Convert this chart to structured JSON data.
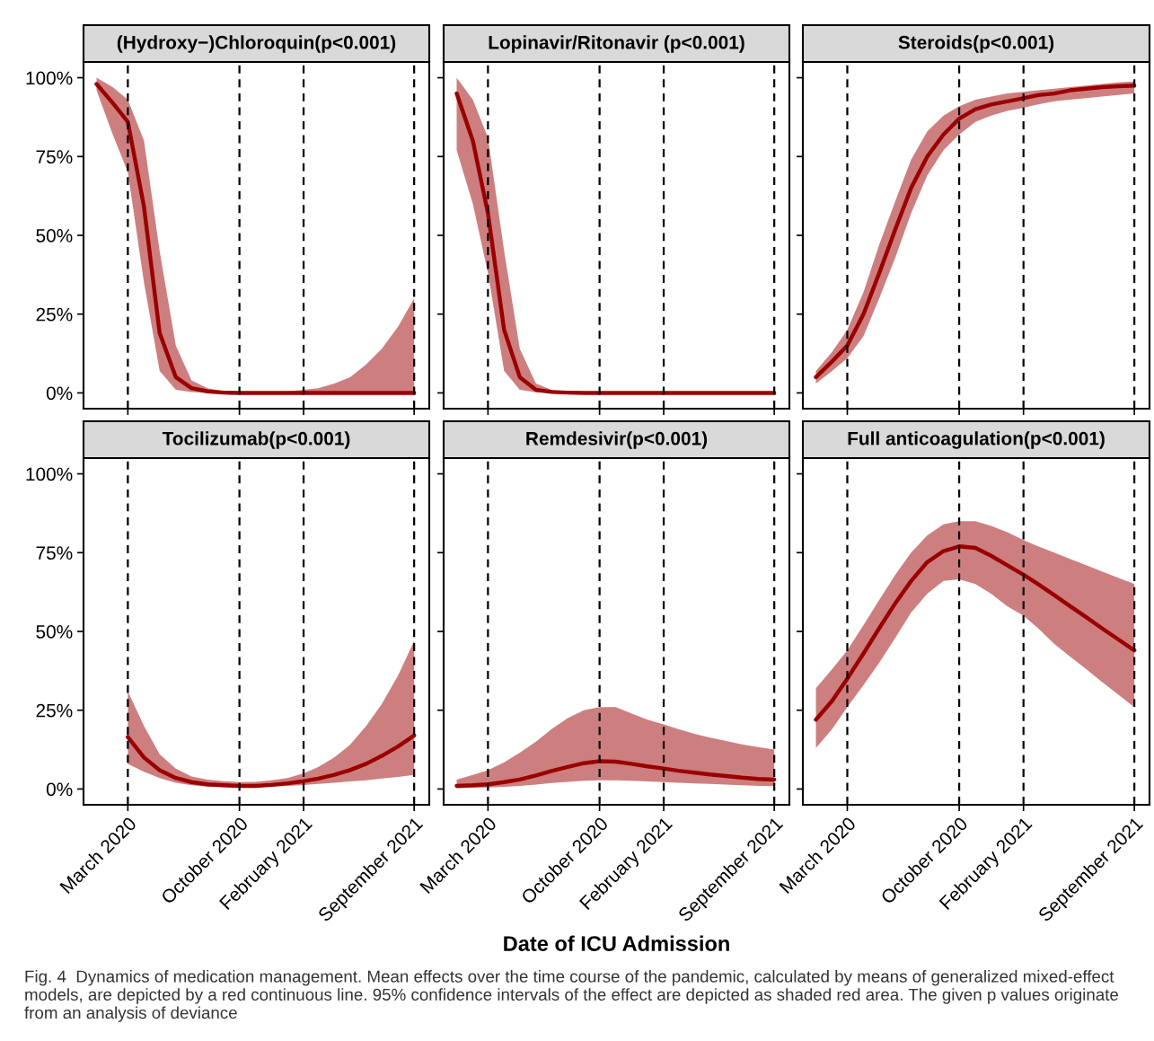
{
  "chart_data": [
    {
      "type": "line",
      "title": "(Hydroxy−)Chloroquin(p<0.001)",
      "tick_labels": "y",
      "xlim": [
        "2019-12-07",
        "2021-09-30"
      ],
      "ylim": [
        -5,
        105
      ],
      "xticks": [
        {
          "value": "2020-03-01",
          "label": null
        },
        {
          "value": "2020-10-01",
          "label": null
        },
        {
          "value": "2021-02-01",
          "label": null
        },
        {
          "value": "2021-09-01",
          "label": null
        }
      ],
      "yticks": [
        {
          "value": 0,
          "label": "0%"
        },
        {
          "value": 25,
          "label": "25%"
        },
        {
          "value": 50,
          "label": "50%"
        },
        {
          "value": 75,
          "label": "75%"
        },
        {
          "value": 100,
          "label": "100%"
        }
      ],
      "ref_lines": [
        {
          "axis": "x",
          "value": "2020-03-01",
          "line_style": "dashed",
          "color": "#000000"
        },
        {
          "axis": "x",
          "value": "2020-10-01",
          "line_style": "dashed",
          "color": "#000000"
        },
        {
          "axis": "x",
          "value": "2021-02-01",
          "line_style": "dashed",
          "color": "#000000"
        },
        {
          "axis": "x",
          "value": "2021-09-01",
          "line_style": "dashed",
          "color": "#000000"
        }
      ],
      "x": [
        "2020-01-01",
        "2020-02-01",
        "2020-03-01",
        "2020-04-01",
        "2020-05-01",
        "2020-06-01",
        "2020-07-01",
        "2020-08-01",
        "2020-09-01",
        "2020-10-01",
        "2020-11-01",
        "2020-12-01",
        "2021-01-01",
        "2021-02-01",
        "2021-03-01",
        "2021-04-01",
        "2021-05-01",
        "2021-06-01",
        "2021-07-01",
        "2021-08-01",
        "2021-09-01"
      ],
      "series": [
        {
          "color": "#9b0000",
          "values": [
            98,
            92,
            86,
            59,
            19,
            5,
            1.5,
            0.5,
            0.1,
            0,
            0,
            0,
            0,
            0,
            0,
            0,
            0,
            0,
            0,
            0,
            0
          ],
          "lower": [
            96,
            82,
            70,
            35,
            7,
            1,
            0.3,
            0,
            0,
            0,
            0,
            0,
            0,
            0,
            0,
            0,
            0,
            0,
            0,
            0,
            0
          ],
          "upper": [
            100,
            97,
            93,
            80,
            45,
            15,
            4,
            1.5,
            0.5,
            0.2,
            0.1,
            0.2,
            0.5,
            1,
            1.5,
            3,
            5,
            9,
            14,
            21,
            30
          ]
        }
      ]
    },
    {
      "type": "line",
      "title": "Lopinavir/Ritonavir (p<0.001)",
      "tick_labels": false,
      "xlim": [
        "2019-12-07",
        "2021-09-30"
      ],
      "ylim": [
        -5,
        105
      ],
      "xticks": [
        {
          "value": "2020-03-01",
          "label": null
        },
        {
          "value": "2020-10-01",
          "label": null
        },
        {
          "value": "2021-02-01",
          "label": null
        },
        {
          "value": "2021-09-01",
          "label": null
        }
      ],
      "yticks": [
        {
          "value": 0,
          "label": null
        },
        {
          "value": 25,
          "label": null
        },
        {
          "value": 50,
          "label": null
        },
        {
          "value": 75,
          "label": null
        },
        {
          "value": 100,
          "label": null
        }
      ],
      "ref_lines": [
        {
          "axis": "x",
          "value": "2020-03-01",
          "line_style": "dashed",
          "color": "#000000"
        },
        {
          "axis": "x",
          "value": "2020-10-01",
          "line_style": "dashed",
          "color": "#000000"
        },
        {
          "axis": "x",
          "value": "2021-02-01",
          "line_style": "dashed",
          "color": "#000000"
        },
        {
          "axis": "x",
          "value": "2021-09-01",
          "line_style": "dashed",
          "color": "#000000"
        }
      ],
      "x": [
        "2020-01-01",
        "2020-02-01",
        "2020-03-01",
        "2020-04-01",
        "2020-05-01",
        "2020-06-01",
        "2020-07-01",
        "2020-08-01",
        "2020-09-01",
        "2020-10-01",
        "2020-11-01",
        "2020-12-01",
        "2021-01-01",
        "2021-02-01",
        "2021-03-01",
        "2021-04-01",
        "2021-05-01",
        "2021-06-01",
        "2021-07-01",
        "2021-08-01",
        "2021-09-01"
      ],
      "series": [
        {
          "color": "#9b0000",
          "values": [
            95,
            80,
            57,
            20,
            5,
            1,
            0.3,
            0.1,
            0,
            0,
            0,
            0,
            0,
            0,
            0,
            0,
            0,
            0,
            0,
            0,
            0
          ],
          "lower": [
            77,
            60,
            38,
            7,
            1,
            0.2,
            0,
            0,
            0,
            0,
            0,
            0,
            0,
            0,
            0,
            0,
            0,
            0,
            0,
            0,
            0
          ],
          "upper": [
            100,
            93,
            81,
            45,
            14,
            3,
            1,
            0.3,
            0,
            0,
            0,
            0,
            0,
            0,
            0,
            0,
            0,
            0,
            0,
            0,
            0
          ]
        }
      ]
    },
    {
      "type": "line",
      "title": "Steroids(p<0.001)",
      "tick_labels": false,
      "xlim": [
        "2019-12-07",
        "2021-09-30"
      ],
      "ylim": [
        -5,
        105
      ],
      "xticks": [
        {
          "value": "2020-03-01",
          "label": null
        },
        {
          "value": "2020-10-01",
          "label": null
        },
        {
          "value": "2021-02-01",
          "label": null
        },
        {
          "value": "2021-09-01",
          "label": null
        }
      ],
      "yticks": [
        {
          "value": 0,
          "label": null
        },
        {
          "value": 25,
          "label": null
        },
        {
          "value": 50,
          "label": null
        },
        {
          "value": 75,
          "label": null
        },
        {
          "value": 100,
          "label": null
        }
      ],
      "ref_lines": [
        {
          "axis": "x",
          "value": "2020-03-01",
          "line_style": "dashed",
          "color": "#000000"
        },
        {
          "axis": "x",
          "value": "2020-10-01",
          "line_style": "dashed",
          "color": "#000000"
        },
        {
          "axis": "x",
          "value": "2021-02-01",
          "line_style": "dashed",
          "color": "#000000"
        },
        {
          "axis": "x",
          "value": "2021-09-01",
          "line_style": "dashed",
          "color": "#000000"
        }
      ],
      "x": [
        "2020-01-01",
        "2020-02-01",
        "2020-03-01",
        "2020-04-01",
        "2020-05-01",
        "2020-06-01",
        "2020-07-01",
        "2020-08-01",
        "2020-09-01",
        "2020-10-01",
        "2020-11-01",
        "2020-12-01",
        "2021-01-01",
        "2021-02-01",
        "2021-03-01",
        "2021-04-01",
        "2021-05-01",
        "2021-06-01",
        "2021-07-01",
        "2021-08-01",
        "2021-09-01"
      ],
      "series": [
        {
          "color": "#9b0000",
          "values": [
            5,
            10,
            15,
            25,
            38,
            52,
            65,
            75,
            82,
            87,
            90,
            91.5,
            92.5,
            93.5,
            94.5,
            95,
            96,
            96.5,
            97,
            97.3,
            97.5
          ],
          "lower": [
            3,
            7,
            11,
            18,
            30,
            43,
            57,
            69,
            77,
            82,
            86,
            88,
            89.5,
            90.5,
            91.5,
            92.5,
            93,
            93.5,
            94,
            94.5,
            95
          ],
          "upper": [
            7,
            13,
            20,
            32,
            47,
            61,
            74,
            83,
            88,
            91,
            93,
            94,
            95,
            95.5,
            96,
            96.5,
            97,
            97.5,
            98,
            98.5,
            98.8
          ]
        }
      ]
    },
    {
      "type": "line",
      "title": "Tocilizumab(p<0.001)",
      "xlim": [
        "2019-12-07",
        "2021-09-30"
      ],
      "ylim": [
        -5,
        105
      ],
      "xticks": [
        {
          "value": "2020-03-01",
          "label": "March 2020"
        },
        {
          "value": "2020-10-01",
          "label": "October 2020"
        },
        {
          "value": "2021-02-01",
          "label": "February 2021"
        },
        {
          "value": "2021-09-01",
          "label": "September 2021"
        }
      ],
      "yticks": [
        {
          "value": 0,
          "label": "0%"
        },
        {
          "value": 25,
          "label": "25%"
        },
        {
          "value": 50,
          "label": "50%"
        },
        {
          "value": 75,
          "label": "75%"
        },
        {
          "value": 100,
          "label": "100%"
        }
      ],
      "ref_lines": [
        {
          "axis": "x",
          "value": "2020-03-01",
          "line_style": "dashed",
          "color": "#000000"
        },
        {
          "axis": "x",
          "value": "2020-10-01",
          "line_style": "dashed",
          "color": "#000000"
        },
        {
          "axis": "x",
          "value": "2021-02-01",
          "line_style": "dashed",
          "color": "#000000"
        },
        {
          "axis": "x",
          "value": "2021-09-01",
          "line_style": "dashed",
          "color": "#000000"
        }
      ],
      "x": [
        "2020-03-01",
        "2020-04-01",
        "2020-05-01",
        "2020-06-01",
        "2020-07-01",
        "2020-08-01",
        "2020-09-01",
        "2020-10-01",
        "2020-11-01",
        "2020-12-01",
        "2021-01-01",
        "2021-02-01",
        "2021-03-01",
        "2021-04-01",
        "2021-05-01",
        "2021-06-01",
        "2021-07-01",
        "2021-08-01",
        "2021-09-01"
      ],
      "series": [
        {
          "color": "#9b0000",
          "values": [
            16.5,
            10,
            6,
            3.5,
            2.2,
            1.5,
            1.2,
            1,
            1,
            1.3,
            1.8,
            2.5,
            3.3,
            4.5,
            6,
            8,
            10.5,
            13.5,
            17
          ],
          "lower": [
            8,
            5.5,
            3.5,
            2,
            1.2,
            0.8,
            0.6,
            0.6,
            0.6,
            0.8,
            1,
            1.3,
            1.6,
            2,
            2.4,
            2.8,
            3.3,
            3.8,
            4.5
          ],
          "upper": [
            31,
            20,
            11,
            6.5,
            4,
            3,
            2.5,
            2.2,
            2.3,
            2.8,
            3.5,
            5,
            7,
            10,
            14,
            20,
            27,
            36,
            47
          ]
        }
      ]
    },
    {
      "type": "line",
      "title": "Remdesivir(p<0.001)",
      "xlabel": "Date of ICU Admission",
      "tick_labels": "x",
      "xlim": [
        "2019-12-07",
        "2021-09-30"
      ],
      "ylim": [
        -5,
        105
      ],
      "xticks": [
        {
          "value": "2020-03-01",
          "label": "March 2020"
        },
        {
          "value": "2020-10-01",
          "label": "October 2020"
        },
        {
          "value": "2021-02-01",
          "label": "February 2021"
        },
        {
          "value": "2021-09-01",
          "label": "September 2021"
        }
      ],
      "yticks": [
        {
          "value": 0,
          "label": null
        },
        {
          "value": 25,
          "label": null
        },
        {
          "value": 50,
          "label": null
        },
        {
          "value": 75,
          "label": null
        },
        {
          "value": 100,
          "label": null
        }
      ],
      "ref_lines": [
        {
          "axis": "x",
          "value": "2020-03-01",
          "line_style": "dashed",
          "color": "#000000"
        },
        {
          "axis": "x",
          "value": "2020-10-01",
          "line_style": "dashed",
          "color": "#000000"
        },
        {
          "axis": "x",
          "value": "2021-02-01",
          "line_style": "dashed",
          "color": "#000000"
        },
        {
          "axis": "x",
          "value": "2021-09-01",
          "line_style": "dashed",
          "color": "#000000"
        }
      ],
      "x": [
        "2020-01-01",
        "2020-02-01",
        "2020-03-01",
        "2020-04-01",
        "2020-05-01",
        "2020-06-01",
        "2020-07-01",
        "2020-08-01",
        "2020-09-01",
        "2020-10-01",
        "2020-11-01",
        "2020-12-01",
        "2021-01-01",
        "2021-02-01",
        "2021-03-01",
        "2021-04-01",
        "2021-05-01",
        "2021-06-01",
        "2021-07-01",
        "2021-08-01",
        "2021-09-01"
      ],
      "series": [
        {
          "color": "#9b0000",
          "values": [
            1,
            1.2,
            1.5,
            2.2,
            3,
            4.3,
            5.7,
            7,
            8.2,
            8.8,
            8.7,
            8,
            7.2,
            6.5,
            5.8,
            5.2,
            4.6,
            4.1,
            3.6,
            3.2,
            3
          ],
          "lower": [
            0.3,
            0.4,
            0.5,
            0.7,
            1,
            1.4,
            1.9,
            2.3,
            2.6,
            2.8,
            2.8,
            2.6,
            2.4,
            2.2,
            2,
            1.8,
            1.6,
            1.4,
            1.2,
            1,
            0.9
          ],
          "upper": [
            3,
            4.5,
            6,
            8.5,
            11.5,
            15,
            19,
            22.5,
            25,
            26,
            26,
            24,
            22,
            20.5,
            19,
            17.5,
            16.3,
            15.2,
            14.2,
            13.3,
            12.5
          ]
        }
      ]
    },
    {
      "type": "line",
      "title": "Full anticoagulation(p<0.001)",
      "tick_labels": "x",
      "xlim": [
        "2019-12-07",
        "2021-09-30"
      ],
      "ylim": [
        -5,
        105
      ],
      "xticks": [
        {
          "value": "2020-03-01",
          "label": "March 2020"
        },
        {
          "value": "2020-10-01",
          "label": "October 2020"
        },
        {
          "value": "2021-02-01",
          "label": "February 2021"
        },
        {
          "value": "2021-09-01",
          "label": "September 2021"
        }
      ],
      "yticks": [
        {
          "value": 0,
          "label": null
        },
        {
          "value": 25,
          "label": null
        },
        {
          "value": 50,
          "label": null
        },
        {
          "value": 75,
          "label": null
        },
        {
          "value": 100,
          "label": null
        }
      ],
      "ref_lines": [
        {
          "axis": "x",
          "value": "2020-03-01",
          "line_style": "dashed",
          "color": "#000000"
        },
        {
          "axis": "x",
          "value": "2020-10-01",
          "line_style": "dashed",
          "color": "#000000"
        },
        {
          "axis": "x",
          "value": "2021-02-01",
          "line_style": "dashed",
          "color": "#000000"
        },
        {
          "axis": "x",
          "value": "2021-09-01",
          "line_style": "dashed",
          "color": "#000000"
        }
      ],
      "x": [
        "2020-01-01",
        "2020-02-01",
        "2020-03-01",
        "2020-04-01",
        "2020-05-01",
        "2020-06-01",
        "2020-07-01",
        "2020-08-01",
        "2020-09-01",
        "2020-10-01",
        "2020-11-01",
        "2020-12-01",
        "2021-01-01",
        "2021-02-01",
        "2021-03-01",
        "2021-04-01",
        "2021-05-01",
        "2021-06-01",
        "2021-07-01",
        "2021-08-01",
        "2021-09-01"
      ],
      "series": [
        {
          "color": "#9b0000",
          "values": [
            22,
            28,
            35,
            43,
            51,
            59,
            66,
            72,
            75.5,
            77,
            76.5,
            74,
            71,
            68,
            65,
            61.5,
            58,
            54.5,
            51,
            47.5,
            44
          ],
          "lower": [
            13,
            19,
            26,
            33,
            40,
            48,
            56,
            62,
            66,
            66.5,
            65,
            62,
            58,
            55,
            51,
            46,
            42,
            38,
            34,
            30,
            26
          ],
          "upper": [
            32,
            38,
            44,
            52,
            60,
            68,
            75,
            80.5,
            84,
            85,
            85,
            83.5,
            81.5,
            79,
            77,
            75,
            73,
            71,
            69,
            67,
            65
          ]
        }
      ],
      "annotations": [
        "Fig. 4  Dynamics of medication management. Mean effects over the time course of the pandemic, calculated by means of generalized mixed-effect models, are depicted by a red continuous line. 95% confidence intervals of the effect are depicted as shaded red area. The given p values originate from an analysis of deviance"
      ]
    }
  ]
}
